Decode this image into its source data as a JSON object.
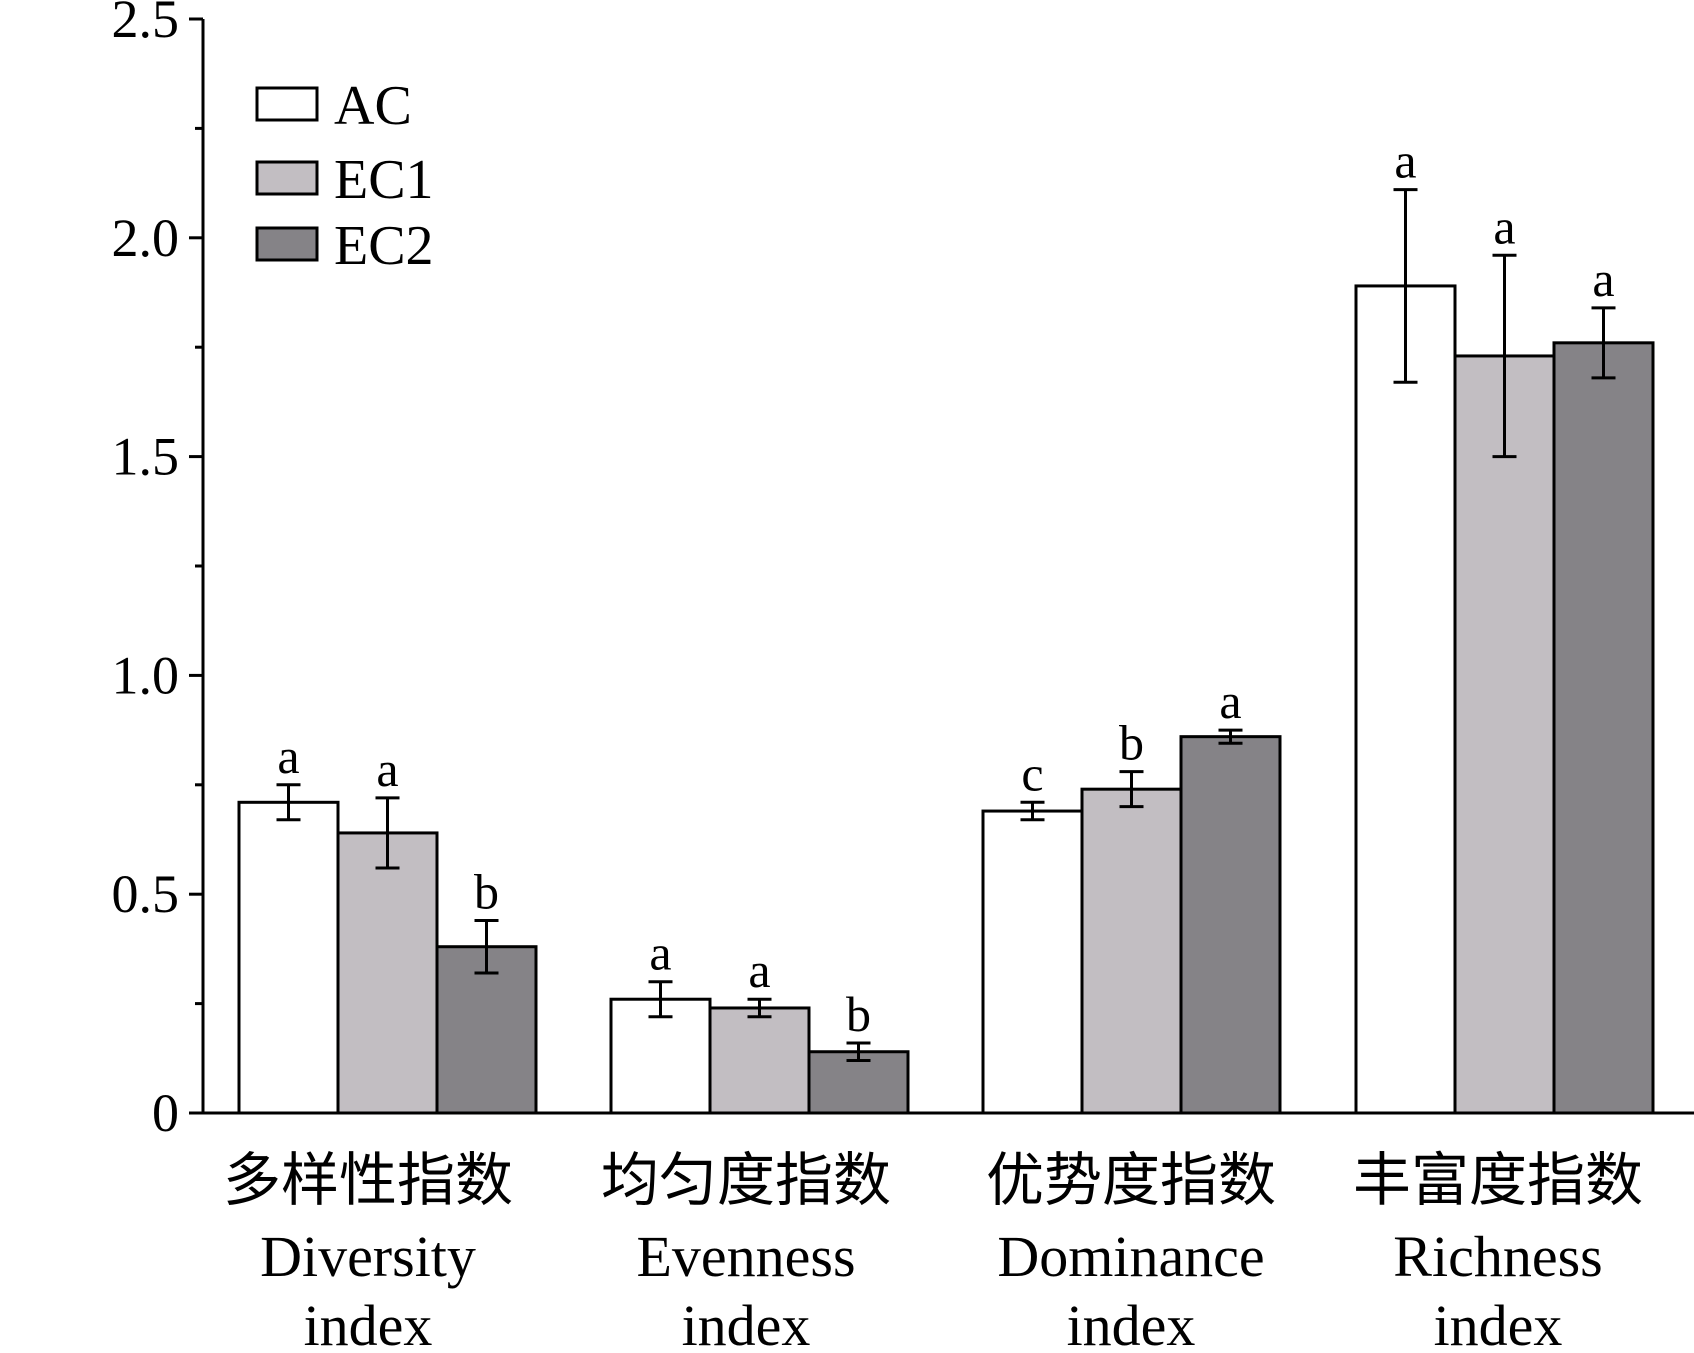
{
  "chart_data": {
    "type": "bar",
    "categories": [
      {
        "zh": "多样性指数",
        "en_line1": "Diversity",
        "en_line2": "index"
      },
      {
        "zh": "均匀度指数",
        "en_line1": "Evenness",
        "en_line2": "index"
      },
      {
        "zh": "优势度指数",
        "en_line1": "Dominance",
        "en_line2": "index"
      },
      {
        "zh": "丰富度指数",
        "en_line1": "Richness",
        "en_line2": "index"
      }
    ],
    "series": [
      {
        "name": "AC",
        "color": "#ffffff",
        "values": [
          0.71,
          0.26,
          0.69,
          1.89
        ],
        "errors": [
          0.04,
          0.04,
          0.02,
          0.22
        ],
        "letters": [
          "a",
          "a",
          "c",
          "a"
        ]
      },
      {
        "name": "EC1",
        "color": "#c2bec2",
        "values": [
          0.64,
          0.24,
          0.74,
          1.73
        ],
        "errors": [
          0.08,
          0.02,
          0.04,
          0.23
        ],
        "letters": [
          "a",
          "a",
          "b",
          "a"
        ]
      },
      {
        "name": "EC2",
        "color": "#858387",
        "values": [
          0.38,
          0.14,
          0.86,
          1.76
        ],
        "errors": [
          0.06,
          0.02,
          0.015,
          0.08
        ],
        "letters": [
          "b",
          "b",
          "a",
          "a"
        ]
      }
    ],
    "y_ticks": [
      "0",
      "0.5",
      "1.0",
      "1.5",
      "2.0",
      "2.5"
    ],
    "ylim": [
      0,
      2.5
    ],
    "grid": false,
    "legend_position": "top-left",
    "xlabel": "",
    "ylabel": "",
    "title": ""
  }
}
